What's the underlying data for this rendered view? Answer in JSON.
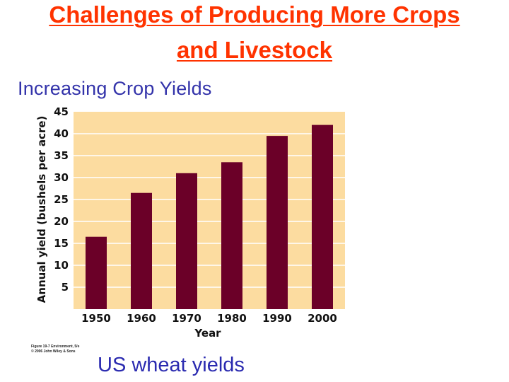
{
  "slide": {
    "title_line1": "Challenges of Producing More Crops",
    "title_line2": "and Livestock",
    "subtitle": "Increasing Crop Yields",
    "caption": "US wheat yields",
    "figure_credit_line1": "Figure 19-7 Environment, 5/e",
    "figure_credit_line2": "© 2006 John Wiley & Sons"
  },
  "colors": {
    "title": "#ff3300",
    "subtitle": "#3333aa",
    "caption": "#2a2ab0",
    "bar": "#6b0028",
    "plot_bg": "#fcdca0",
    "grid": "#ffffff"
  },
  "chart_data": {
    "type": "bar",
    "title": "",
    "xlabel": "Year",
    "ylabel": "Annual yield (bushels per acre)",
    "categories": [
      "1950",
      "1960",
      "1970",
      "1980",
      "1990",
      "2000"
    ],
    "values": [
      16.5,
      26.5,
      31,
      33.5,
      39.5,
      42
    ],
    "ylim": [
      0,
      45
    ],
    "yticks": [
      5,
      10,
      15,
      20,
      25,
      30,
      35,
      40,
      45
    ],
    "grid": true,
    "legend": "none"
  }
}
